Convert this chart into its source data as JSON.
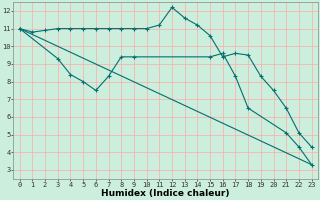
{
  "xlabel": "Humidex (Indice chaleur)",
  "bg_color": "#cceedd",
  "grid_color": "#ffaaaa",
  "line_color": "#007070",
  "xlim": [
    -0.5,
    23.5
  ],
  "ylim": [
    2.5,
    12.5
  ],
  "xticks": [
    0,
    1,
    2,
    3,
    4,
    5,
    6,
    7,
    8,
    9,
    10,
    11,
    12,
    13,
    14,
    15,
    16,
    17,
    18,
    19,
    20,
    21,
    22,
    23
  ],
  "yticks": [
    3,
    4,
    5,
    6,
    7,
    8,
    9,
    10,
    11,
    12
  ],
  "line1_x": [
    0,
    1,
    2,
    3,
    4,
    5,
    6,
    7,
    8,
    9,
    10,
    11,
    12,
    13,
    14,
    15,
    16,
    17,
    18,
    19,
    20,
    21,
    22,
    23
  ],
  "line1_y": [
    11.0,
    10.8,
    10.9,
    11.0,
    11.0,
    11.0,
    11.0,
    11.0,
    11.0,
    11.0,
    11.0,
    11.2,
    12.2,
    11.6,
    11.2,
    10.6,
    9.4,
    9.6,
    9.5,
    8.3,
    7.5,
    6.5,
    5.1,
    4.3
  ],
  "line2_x": [
    0,
    3,
    4,
    5,
    6,
    7,
    8,
    9,
    15,
    16,
    17,
    18,
    21,
    22,
    23
  ],
  "line2_y": [
    11.0,
    9.3,
    8.4,
    8.0,
    7.5,
    8.3,
    9.4,
    9.4,
    9.4,
    9.6,
    8.3,
    6.5,
    5.1,
    4.3,
    3.3
  ],
  "line3_x": [
    0,
    23
  ],
  "line3_y": [
    11.0,
    3.3
  ],
  "tick_fontsize": 5.0,
  "xlabel_fontsize": 6.5
}
